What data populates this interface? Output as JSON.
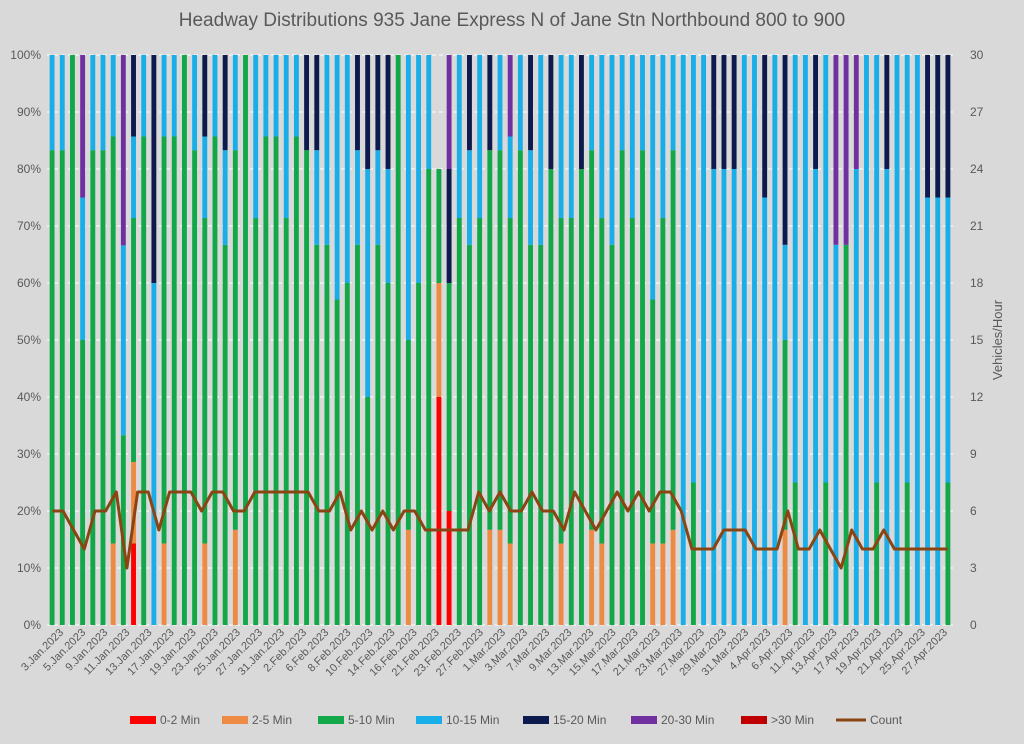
{
  "chart_data": {
    "type": "bar",
    "stacked": true,
    "title": "Headway Distributions 935 Jane Express  N of Jane Stn Northbound 800 to 900",
    "xlabel": "",
    "ylabel": "",
    "y2label": "Vehicles/Hour",
    "ylim": [
      0,
      100
    ],
    "y2lim": [
      0,
      30
    ],
    "yticks": [
      "0%",
      "10%",
      "20%",
      "30%",
      "40%",
      "50%",
      "60%",
      "70%",
      "80%",
      "90%",
      "100%"
    ],
    "y2ticks": [
      "0",
      "3",
      "6",
      "9",
      "12",
      "15",
      "18",
      "21",
      "24",
      "27",
      "30"
    ],
    "grid": true,
    "legend_position": "bottom",
    "x_tick_labels": [
      "3.Jan.2023",
      "5.Jan.2023",
      "9.Jan.2023",
      "11.Jan.2023",
      "13.Jan.2023",
      "17.Jan.2023",
      "19.Jan.2023",
      "23.Jan.2023",
      "25.Jan.2023",
      "27.Jan.2023",
      "31.Jan.2023",
      "2.Feb.2023",
      "6.Feb.2023",
      "8.Feb.2023",
      "10.Feb.2023",
      "14.Feb.2023",
      "16.Feb.2023",
      "21.Feb.2023",
      "23.Feb.2023",
      "27.Feb.2023",
      "1.Mar.2023",
      "3.Mar.2023",
      "7.Mar.2023",
      "9.Mar.2023",
      "13.Mar.2023",
      "15.Mar.2023",
      "17.Mar.2023",
      "21.Mar.2023",
      "23.Mar.2023",
      "27.Mar.2023",
      "29.Mar.2023",
      "31.Mar.2023",
      "4.Apr.2023",
      "6.Apr.2023",
      "11.Apr.2023",
      "13.Apr.2023",
      "17.Apr.2023",
      "19.Apr.2023",
      "21.Apr.2023",
      "25.Apr.2023",
      "27.Apr.2023"
    ],
    "series": [
      {
        "name": "0-2 Min",
        "color": "#ff0000",
        "type": "bar"
      },
      {
        "name": "2-5 Min",
        "color": "#ed8b45",
        "type": "bar"
      },
      {
        "name": "5-10 Min",
        "color": "#12a84a",
        "type": "bar"
      },
      {
        "name": "10-15 Min",
        "color": "#1aaee8",
        "type": "bar"
      },
      {
        "name": "15-20 Min",
        "color": "#0d1a4d",
        "type": "bar"
      },
      {
        "name": "20-30 Min",
        "color": "#7030a0",
        "type": "bar"
      },
      {
        "name": ">30 Min",
        "color": "#c00000",
        "type": "bar"
      },
      {
        "name": "Count",
        "color": "#8b4513",
        "type": "line",
        "axis": "secondary"
      }
    ],
    "bars": [
      [
        0,
        0,
        83.3,
        16.7,
        0,
        0,
        0
      ],
      [
        0,
        0,
        83.3,
        16.7,
        0,
        0,
        0
      ],
      [
        0,
        0,
        100,
        0,
        0,
        0,
        0
      ],
      [
        0,
        0,
        50,
        25,
        0,
        25,
        0
      ],
      [
        0,
        0,
        83.3,
        16.7,
        0,
        0,
        0
      ],
      [
        0,
        0,
        83.3,
        16.7,
        0,
        0,
        0
      ],
      [
        0,
        14.3,
        71.4,
        14.3,
        0,
        0,
        0
      ],
      [
        0,
        0,
        33.3,
        33.3,
        0,
        33.4,
        0
      ],
      [
        14.3,
        14.3,
        42.8,
        14.3,
        14.3,
        0,
        0
      ],
      [
        0,
        0,
        85.7,
        14.3,
        0,
        0,
        0
      ],
      [
        0,
        0,
        0,
        60,
        40,
        0,
        0
      ],
      [
        0,
        14.3,
        71.4,
        14.3,
        0,
        0,
        0
      ],
      [
        0,
        0,
        85.7,
        14.3,
        0,
        0,
        0
      ],
      [
        0,
        0,
        100,
        0,
        0,
        0,
        0
      ],
      [
        0,
        0,
        83.3,
        16.7,
        0,
        0,
        0
      ],
      [
        0,
        14.3,
        57.1,
        14.3,
        14.3,
        0,
        0
      ],
      [
        0,
        0,
        85.7,
        14.3,
        0,
        0,
        0
      ],
      [
        0,
        0,
        66.7,
        16.6,
        16.7,
        0,
        0
      ],
      [
        0,
        16.7,
        66.6,
        16.7,
        0,
        0,
        0
      ],
      [
        0,
        0,
        100,
        0,
        0,
        0,
        0
      ],
      [
        0,
        0,
        71.4,
        28.6,
        0,
        0,
        0
      ],
      [
        0,
        0,
        85.7,
        14.3,
        0,
        0,
        0
      ],
      [
        0,
        0,
        85.7,
        14.3,
        0,
        0,
        0
      ],
      [
        0,
        0,
        71.4,
        28.6,
        0,
        0,
        0
      ],
      [
        0,
        0,
        85.7,
        14.3,
        0,
        0,
        0
      ],
      [
        0,
        0,
        83.3,
        0,
        16.7,
        0,
        0
      ],
      [
        0,
        0,
        66.7,
        16.6,
        16.7,
        0,
        0
      ],
      [
        0,
        0,
        66.7,
        33.3,
        0,
        0,
        0
      ],
      [
        0,
        0,
        57.1,
        42.9,
        0,
        0,
        0
      ],
      [
        0,
        0,
        60,
        40,
        0,
        0,
        0
      ],
      [
        0,
        0,
        66.7,
        16.6,
        16.7,
        0,
        0
      ],
      [
        0,
        0,
        40,
        40,
        20,
        0,
        0
      ],
      [
        0,
        0,
        66.7,
        16.6,
        16.7,
        0,
        0
      ],
      [
        0,
        0,
        60,
        20,
        20,
        0,
        0
      ],
      [
        0,
        0,
        100,
        0,
        0,
        0,
        0
      ],
      [
        0,
        16.7,
        33.3,
        50,
        0,
        0,
        0
      ],
      [
        0,
        0,
        60,
        40,
        0,
        0,
        0
      ],
      [
        0,
        0,
        80,
        20,
        0,
        0,
        0
      ],
      [
        40,
        20,
        20,
        0,
        0,
        0,
        0
      ],
      [
        20,
        0,
        40,
        0,
        20,
        20,
        0
      ],
      [
        0,
        0,
        71.4,
        28.6,
        0,
        0,
        0
      ],
      [
        0,
        0,
        66.7,
        16.6,
        16.7,
        0,
        0
      ],
      [
        0,
        0,
        71.4,
        28.6,
        0,
        0,
        0
      ],
      [
        0,
        16.7,
        66.6,
        0,
        16.7,
        0,
        0
      ],
      [
        0,
        16.7,
        66.6,
        16.7,
        0,
        0,
        0
      ],
      [
        0,
        14.3,
        57.1,
        14.3,
        0,
        14.3,
        0
      ],
      [
        0,
        0,
        83.3,
        16.7,
        0,
        0,
        0
      ],
      [
        0,
        0,
        66.7,
        16.6,
        16.7,
        0,
        0
      ],
      [
        0,
        0,
        66.7,
        33.3,
        0,
        0,
        0
      ],
      [
        0,
        0,
        80,
        0,
        20,
        0,
        0
      ],
      [
        0,
        14.3,
        57.1,
        28.6,
        0,
        0,
        0
      ],
      [
        0,
        0,
        71.4,
        28.6,
        0,
        0,
        0
      ],
      [
        0,
        0,
        80,
        0,
        20,
        0,
        0
      ],
      [
        0,
        16.7,
        66.6,
        16.7,
        0,
        0,
        0
      ],
      [
        0,
        14.3,
        57.1,
        28.6,
        0,
        0,
        0
      ],
      [
        0,
        0,
        66.7,
        33.3,
        0,
        0,
        0
      ],
      [
        0,
        0,
        83.3,
        16.7,
        0,
        0,
        0
      ],
      [
        0,
        0,
        71.4,
        28.6,
        0,
        0,
        0
      ],
      [
        0,
        0,
        83.3,
        16.7,
        0,
        0,
        0
      ],
      [
        0,
        14.3,
        42.8,
        42.9,
        0,
        0,
        0
      ],
      [
        0,
        14.3,
        57.1,
        28.6,
        0,
        0,
        0
      ],
      [
        0,
        16.7,
        66.6,
        16.7,
        0,
        0,
        0
      ],
      [
        0,
        0,
        0,
        100,
        0,
        0,
        0
      ],
      [
        0,
        0,
        25,
        75,
        0,
        0,
        0
      ],
      [
        0,
        0,
        0,
        100,
        0,
        0,
        0
      ],
      [
        0,
        0,
        0,
        80,
        20,
        0,
        0
      ],
      [
        0,
        0,
        0,
        80,
        20,
        0,
        0
      ],
      [
        0,
        0,
        0,
        80,
        20,
        0,
        0
      ],
      [
        0,
        0,
        0,
        100,
        0,
        0,
        0
      ],
      [
        0,
        0,
        0,
        100,
        0,
        0,
        0
      ],
      [
        0,
        0,
        0,
        75,
        25,
        0,
        0
      ],
      [
        0,
        0,
        0,
        100,
        0,
        0,
        0
      ],
      [
        0,
        16.7,
        33.3,
        16.7,
        33.3,
        0,
        0
      ],
      [
        0,
        0,
        25,
        75,
        0,
        0,
        0
      ],
      [
        0,
        0,
        0,
        100,
        0,
        0,
        0
      ],
      [
        0,
        0,
        0,
        80,
        20,
        0,
        0
      ],
      [
        0,
        0,
        25,
        75,
        0,
        0,
        0
      ],
      [
        0,
        0,
        0,
        66.7,
        0,
        33.3,
        0
      ],
      [
        0,
        0,
        66.7,
        0,
        0,
        33.3,
        0
      ],
      [
        0,
        0,
        0,
        80,
        0,
        20,
        0
      ],
      [
        0,
        0,
        0,
        100,
        0,
        0,
        0
      ],
      [
        0,
        0,
        25,
        75,
        0,
        0,
        0
      ],
      [
        0,
        0,
        0,
        80,
        20,
        0,
        0
      ],
      [
        0,
        0,
        0,
        100,
        0,
        0,
        0
      ],
      [
        0,
        0,
        25,
        75,
        0,
        0,
        0
      ],
      [
        0,
        0,
        0,
        100,
        0,
        0,
        0
      ],
      [
        0,
        0,
        0,
        75,
        25,
        0,
        0
      ],
      [
        0,
        0,
        0,
        75,
        25,
        0,
        0
      ],
      [
        0,
        0,
        25,
        50,
        25,
        0,
        0
      ]
    ],
    "count": [
      6,
      6,
      5,
      4,
      6,
      6,
      7,
      3,
      7,
      7,
      5,
      7,
      7,
      7,
      6,
      7,
      7,
      6,
      6,
      7,
      7,
      7,
      7,
      7,
      7,
      6,
      6,
      7,
      5,
      6,
      5,
      6,
      5,
      6,
      6,
      5,
      5,
      5,
      5,
      5,
      7,
      6,
      7,
      6,
      6,
      7,
      6,
      6,
      5,
      7,
      6,
      5,
      6,
      7,
      6,
      7,
      6,
      7,
      7,
      6,
      4,
      4,
      4,
      5,
      5,
      5,
      4,
      4,
      4,
      6,
      4,
      4,
      5,
      4,
      3,
      5,
      4,
      4,
      5,
      4,
      4,
      4,
      4,
      4,
      4
    ]
  }
}
